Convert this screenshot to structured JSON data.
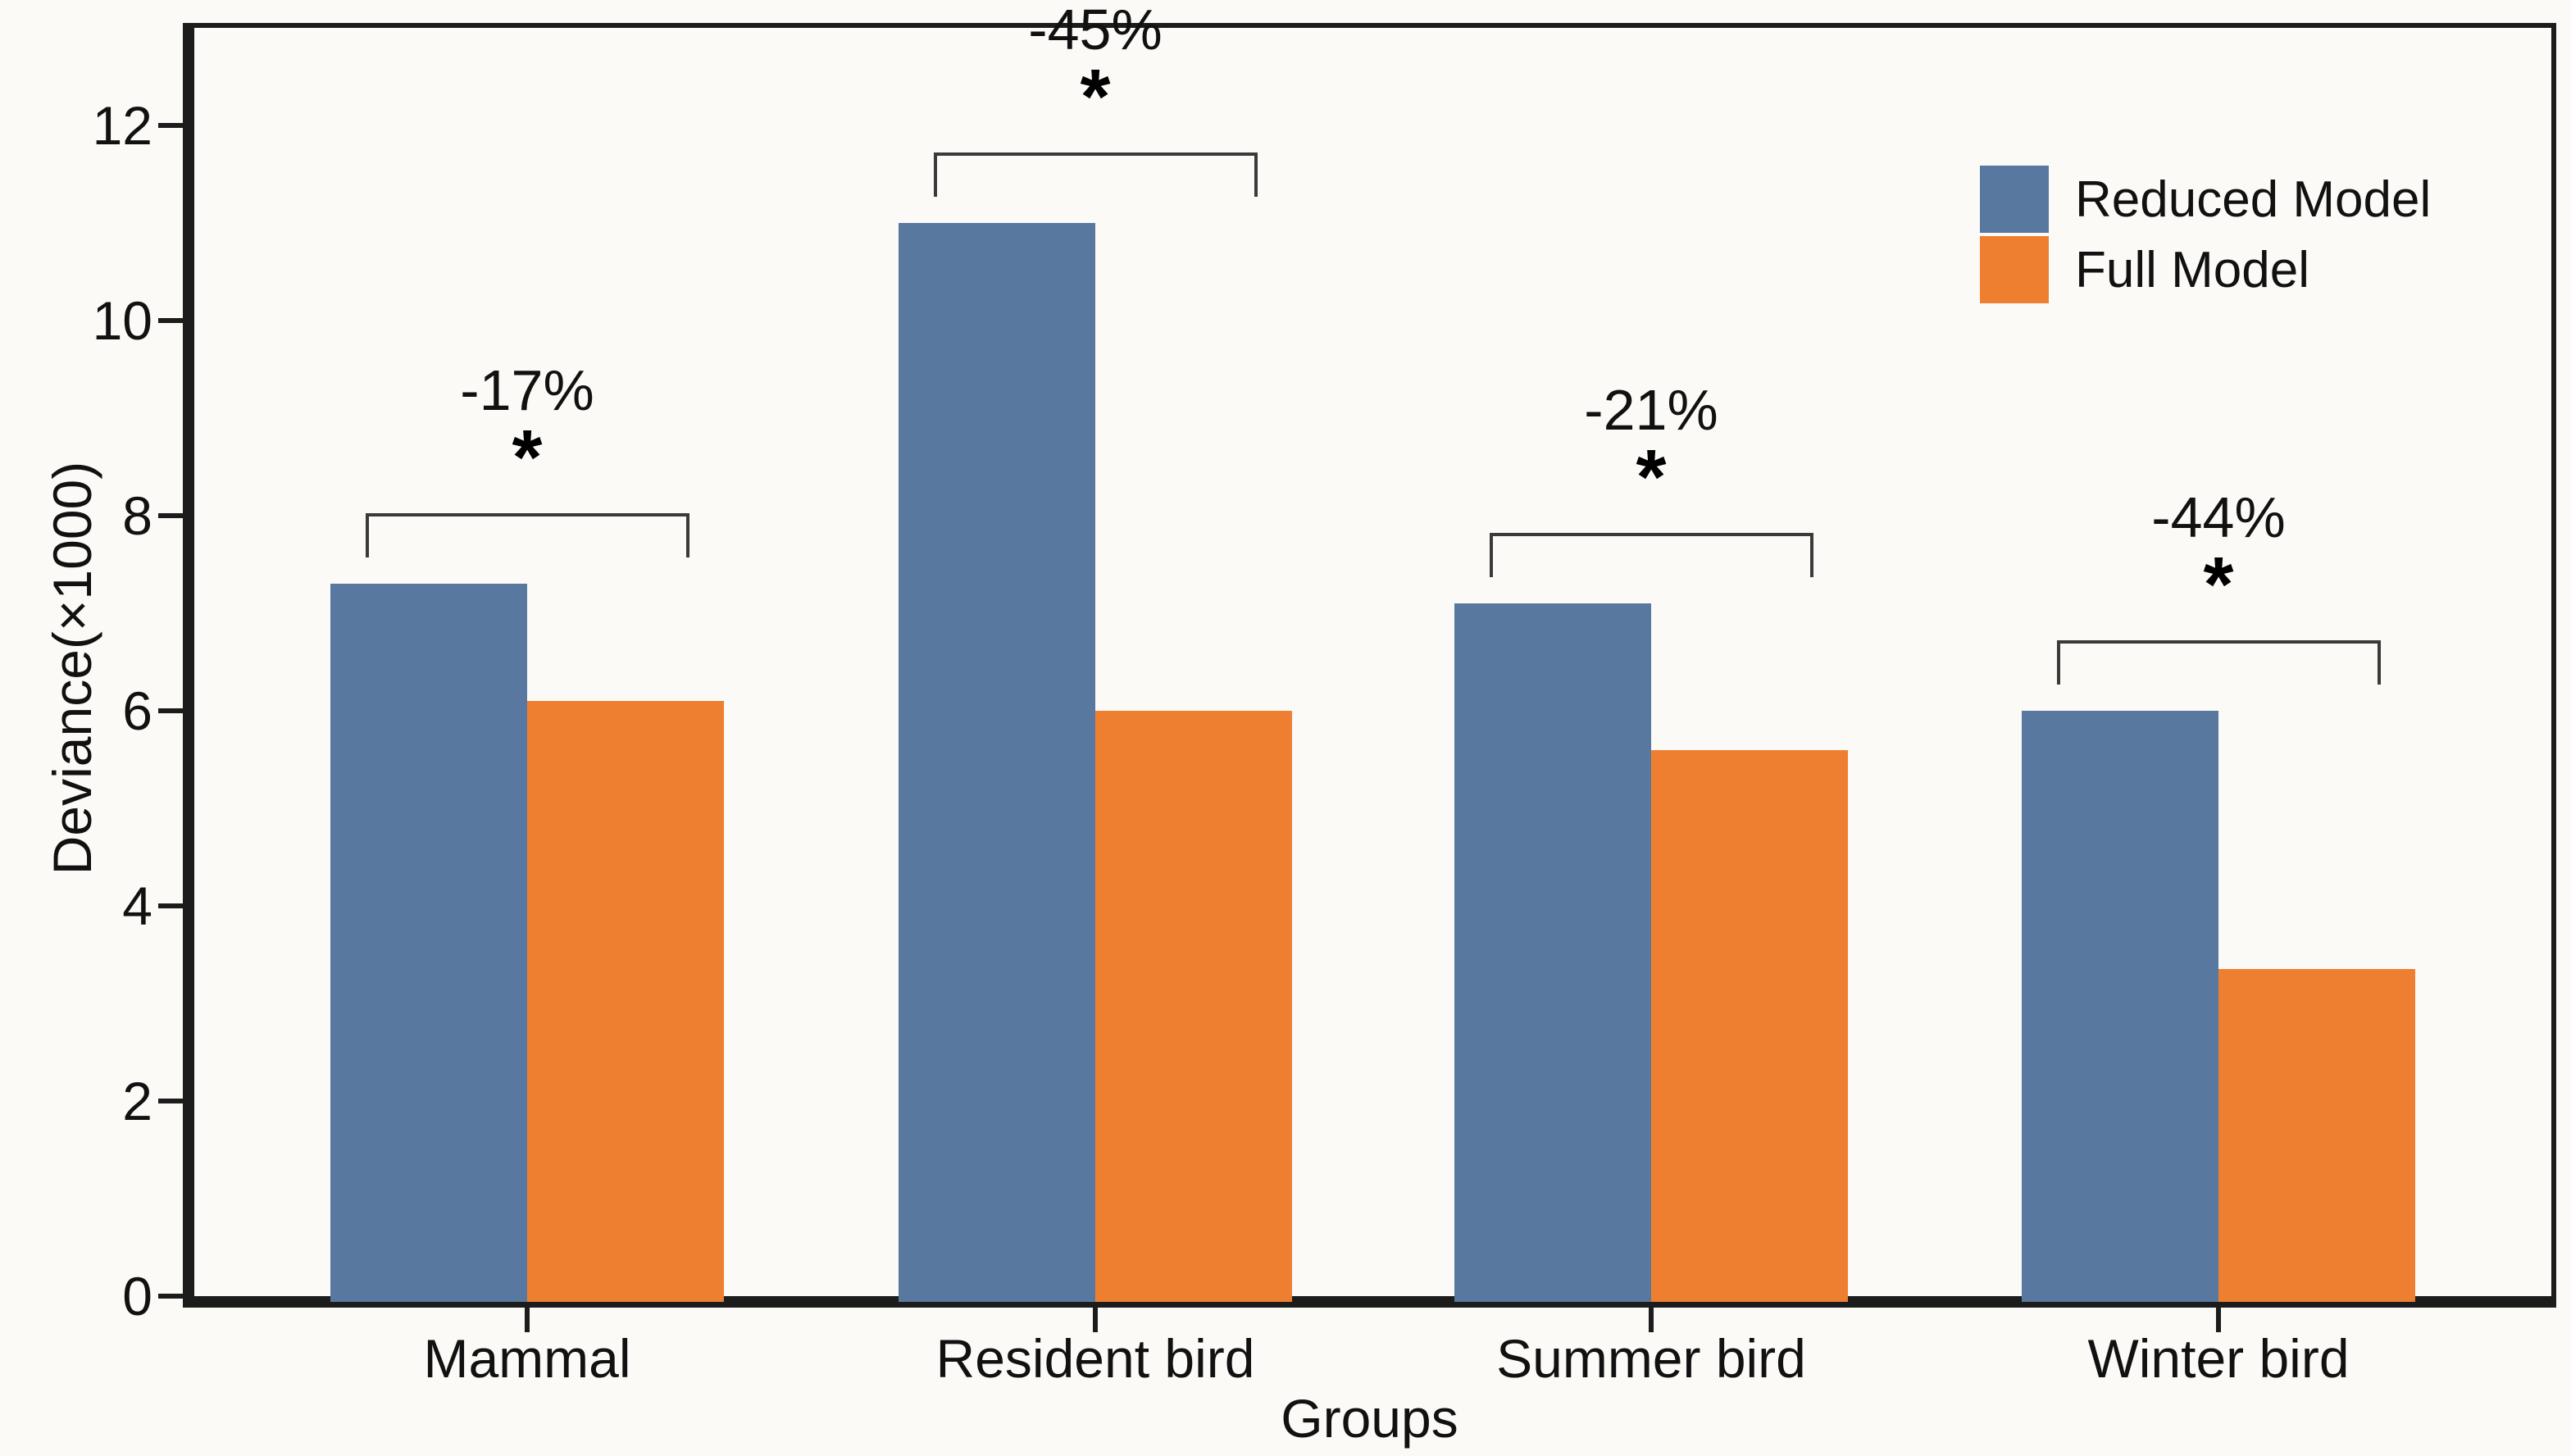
{
  "chart_data": {
    "type": "bar",
    "title": "",
    "xlabel": "Groups",
    "ylabel": "Deviance(×1000)",
    "ylim": [
      0,
      13
    ],
    "yticks": [
      0,
      2,
      4,
      6,
      8,
      10,
      12
    ],
    "categories": [
      "Mammal",
      "Resident bird",
      "Summer bird",
      "Winter bird"
    ],
    "series": [
      {
        "name": "Reduced Model",
        "color": "#5878a0",
        "values": [
          7.3,
          11.0,
          7.1,
          6.0
        ]
      },
      {
        "name": "Full Model",
        "color": "#ee7f31",
        "values": [
          6.1,
          6.0,
          5.6,
          3.35
        ]
      }
    ],
    "annotations": [
      {
        "label": "-17%",
        "sig": "*"
      },
      {
        "label": "-45%",
        "sig": "*"
      },
      {
        "label": "-21%",
        "sig": "*"
      },
      {
        "label": "-44%",
        "sig": "*"
      }
    ],
    "legend_position": "top-right",
    "grid": false,
    "colors": {
      "axis": "#1c1c1c",
      "bracket": "#3a3a3a",
      "background": "#fbfaf6"
    }
  }
}
